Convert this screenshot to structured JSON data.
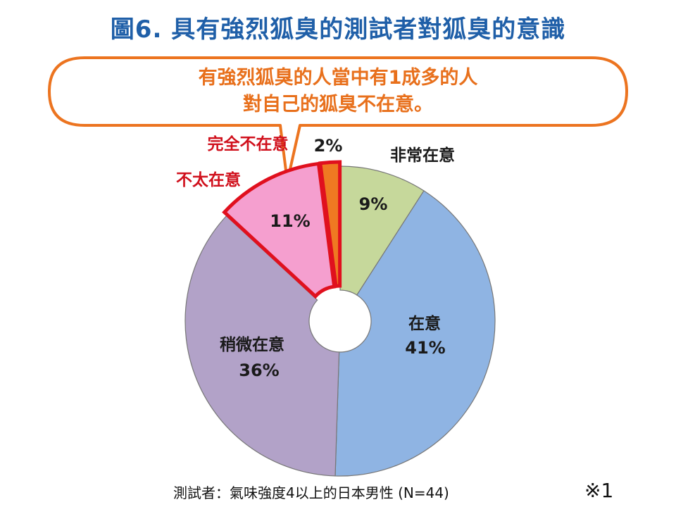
{
  "title": "圖6. 具有強烈狐臭的測試者對狐臭的意識",
  "callout": {
    "line1": "有強烈狐臭的人當中有1成多的人",
    "line2": "對自己的狐臭不在意。"
  },
  "chart_data": {
    "type": "pie",
    "variant": "donut",
    "start": "12 o'clock, clockwise",
    "slices": [
      {
        "label": "非常在意",
        "value": 9,
        "display": "9%",
        "color": "#c6d89b",
        "highlight": false
      },
      {
        "label": "在意",
        "value": 41,
        "display": "41%",
        "color": "#8fb4e3",
        "highlight": false
      },
      {
        "label": "稍微在意",
        "value": 36,
        "display": "36%",
        "color": "#b2a2c8",
        "highlight": false
      },
      {
        "label": "不太在意",
        "value": 11,
        "display": "11%",
        "color": "#f59fcf",
        "highlight": true
      },
      {
        "label": "完全不在意",
        "value": 2,
        "display": "2%",
        "color": "#ef7922",
        "highlight": true
      }
    ],
    "highlight_color": "#e0101e",
    "label_color": "#1a1a1a",
    "highlight_label_color": "#d0101c"
  },
  "footnote": "測試者：氣味強度4以上的日本男性 (N=44)",
  "mark": "※1"
}
